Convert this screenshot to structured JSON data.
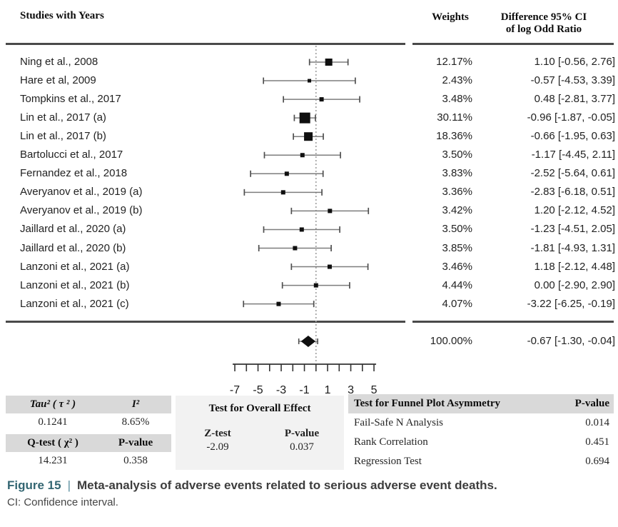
{
  "header": {
    "studies_col": "Studies with Years",
    "weights_col": "Weights",
    "diff_col_line1": "Difference 95% CI",
    "diff_col_line2": "of log Odd Ratio"
  },
  "chart_data": {
    "type": "forest",
    "xlabel": "Difference of log Odd Ratio",
    "axis_ticks": [
      -7,
      -6,
      -5,
      -4,
      -3,
      -2,
      -1,
      0,
      1,
      2,
      3,
      4,
      5
    ],
    "axis_tick_labels": [
      -7,
      -5,
      -3,
      -1,
      1,
      3,
      5
    ],
    "axis_range": [
      -7.3,
      5.3
    ],
    "zero_line": 0,
    "studies": [
      {
        "label": "Ning et al., 2008",
        "weight": "12.17%",
        "weight_value": 12.17,
        "estimate": 1.1,
        "ci_low": -0.56,
        "ci_high": 2.76,
        "display": "1.10 [-0.56, 2.76]"
      },
      {
        "label": "Hare et al, 2009",
        "weight": "2.43%",
        "weight_value": 2.43,
        "estimate": -0.57,
        "ci_low": -4.53,
        "ci_high": 3.39,
        "display": "-0.57 [-4.53, 3.39]"
      },
      {
        "label": "Tompkins et al., 2017",
        "weight": "3.48%",
        "weight_value": 3.48,
        "estimate": 0.48,
        "ci_low": -2.81,
        "ci_high": 3.77,
        "display": "0.48 [-2.81, 3.77]"
      },
      {
        "label": "Lin et al., 2017 (a)",
        "weight": "30.11%",
        "weight_value": 30.11,
        "estimate": -0.96,
        "ci_low": -1.87,
        "ci_high": -0.05,
        "display": "-0.96 [-1.87, -0.05]"
      },
      {
        "label": "Lin et al., 2017 (b)",
        "weight": "18.36%",
        "weight_value": 18.36,
        "estimate": -0.66,
        "ci_low": -1.95,
        "ci_high": 0.63,
        "display": "-0.66 [-1.95, 0.63]"
      },
      {
        "label": "Bartolucci et al., 2017",
        "weight": "3.50%",
        "weight_value": 3.5,
        "estimate": -1.17,
        "ci_low": -4.45,
        "ci_high": 2.11,
        "display": "-1.17 [-4.45, 2.11]"
      },
      {
        "label": "Fernandez et al., 2018",
        "weight": "3.83%",
        "weight_value": 3.83,
        "estimate": -2.52,
        "ci_low": -5.64,
        "ci_high": 0.61,
        "display": "-2.52 [-5.64, 0.61]"
      },
      {
        "label": "Averyanov et al., 2019 (a)",
        "weight": "3.36%",
        "weight_value": 3.36,
        "estimate": -2.83,
        "ci_low": -6.18,
        "ci_high": 0.51,
        "display": "-2.83 [-6.18, 0.51]"
      },
      {
        "label": "Averyanov et al., 2019 (b)",
        "weight": "3.42%",
        "weight_value": 3.42,
        "estimate": 1.2,
        "ci_low": -2.12,
        "ci_high": 4.52,
        "display": "1.20 [-2.12, 4.52]"
      },
      {
        "label": "Jaillard et al., 2020 (a)",
        "weight": "3.50%",
        "weight_value": 3.5,
        "estimate": -1.23,
        "ci_low": -4.51,
        "ci_high": 2.05,
        "display": "-1.23 [-4.51, 2.05]"
      },
      {
        "label": "Jaillard et al., 2020 (b)",
        "weight": "3.85%",
        "weight_value": 3.85,
        "estimate": -1.81,
        "ci_low": -4.93,
        "ci_high": 1.31,
        "display": "-1.81 [-4.93, 1.31]"
      },
      {
        "label": "Lanzoni et al., 2021 (a)",
        "weight": "3.46%",
        "weight_value": 3.46,
        "estimate": 1.18,
        "ci_low": -2.12,
        "ci_high": 4.48,
        "display": "1.18 [-2.12, 4.48]"
      },
      {
        "label": "Lanzoni et al., 2021 (b)",
        "weight": "4.44%",
        "weight_value": 4.44,
        "estimate": 0.0,
        "ci_low": -2.9,
        "ci_high": 2.9,
        "display": "0.00 [-2.90, 2.90]"
      },
      {
        "label": "Lanzoni et al., 2021 (c)",
        "weight": "4.07%",
        "weight_value": 4.07,
        "estimate": -3.22,
        "ci_low": -6.25,
        "ci_high": -0.19,
        "display": "-3.22 [-6.25, -0.19]"
      }
    ],
    "summary": {
      "weight": "100.00%",
      "estimate": -0.67,
      "ci_low": -1.3,
      "ci_high": -0.04,
      "display": "-0.67 [-1.30, -0.04]"
    }
  },
  "stats": {
    "tau2_label": "Tau² ( τ ² )",
    "i2_label": "I²",
    "tau2_value": "0.1241",
    "i2_value": "8.65%",
    "qtest_label": "Q-test ( χ² )",
    "q_pvalue_label": "P-value",
    "qtest_value": "14.231",
    "q_pvalue_value": "0.358",
    "overall_title": "Test for Overall Effect",
    "ztest_label": "Z-test",
    "z_pvalue_label": "P-value",
    "ztest_value": "-2.09",
    "z_pvalue_value": "0.037",
    "funnel_title": "Test for Funnel Plot Asymmetry",
    "funnel_pvalue_label": "P-value",
    "funnel_rows": [
      {
        "label": "Fail-Safe N Analysis",
        "value": "0.014"
      },
      {
        "label": "Rank Correlation",
        "value": "0.451"
      },
      {
        "label": "Regression Test",
        "value": "0.694"
      }
    ]
  },
  "caption": {
    "figure_label": "Figure 15",
    "separator": "|",
    "title": "Meta-analysis of adverse events related to serious adverse event deaths.",
    "note": "CI: Confidence interval."
  },
  "colors": {
    "accent_teal": "#336672",
    "marker": "#0f0f0f",
    "ci_line": "#7d7d7d",
    "ci_cap": "#4f4f4f",
    "rule": "#4a4a4a",
    "dotted_line": "#9e9e9e",
    "header_bg": "#d9d9d9",
    "panel_bg": "#f2f2f2"
  }
}
